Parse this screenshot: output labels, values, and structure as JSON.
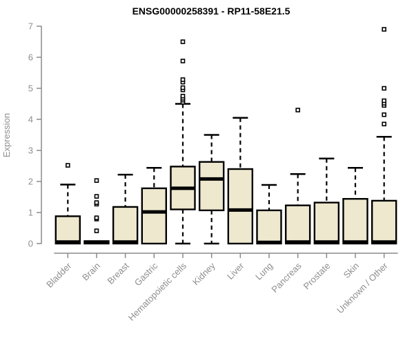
{
  "header": {
    "title": "ENSG00000258391 - RP11-58E21.5"
  },
  "chart_data": {
    "type": "boxplot",
    "title": "ENSG00000258391 - RP11-58E21.5",
    "xlabel": "",
    "ylabel": "Expression",
    "ylim": [
      0,
      7
    ],
    "yticks": [
      0,
      1,
      2,
      3,
      4,
      5,
      6,
      7
    ],
    "grid": false,
    "legend": "none",
    "categories": [
      "Bladder",
      "Brain",
      "Breast",
      "Gastric",
      "Hematopoietic cells",
      "Kidney",
      "Liver",
      "Lung",
      "Pancreas",
      "Prostate",
      "Skin",
      "Unknown / Other"
    ],
    "series": [
      {
        "name": "Bladder",
        "whisker_low": 0,
        "q1": 0,
        "median": 0.05,
        "q3": 0.88,
        "whisker_high": 1.9,
        "outliers": [
          2.52
        ]
      },
      {
        "name": "Brain",
        "whisker_low": 0,
        "q1": 0,
        "median": 0.04,
        "q3": 0.08,
        "whisker_high": 0.08,
        "outliers": [
          0.41,
          0.79,
          0.83,
          1.27,
          1.32,
          1.52,
          2.03
        ]
      },
      {
        "name": "Breast",
        "whisker_low": 0,
        "q1": 0,
        "median": 0.05,
        "q3": 1.18,
        "whisker_high": 2.22,
        "outliers": []
      },
      {
        "name": "Gastric",
        "whisker_low": 0,
        "q1": 0,
        "median": 1.02,
        "q3": 1.78,
        "whisker_high": 2.44,
        "outliers": []
      },
      {
        "name": "Hematopoietic cells",
        "whisker_low": 0,
        "q1": 1.1,
        "median": 1.78,
        "q3": 2.48,
        "whisker_high": 4.5,
        "outliers": [
          4.55,
          4.62,
          4.68,
          4.75,
          4.95,
          5.02,
          5.2,
          5.28,
          5.88,
          6.5
        ]
      },
      {
        "name": "Kidney",
        "whisker_low": 0,
        "q1": 1.07,
        "median": 2.08,
        "q3": 2.63,
        "whisker_high": 3.5,
        "outliers": []
      },
      {
        "name": "Liver",
        "whisker_low": 0,
        "q1": 0,
        "median": 1.08,
        "q3": 2.4,
        "whisker_high": 4.05,
        "outliers": []
      },
      {
        "name": "Lung",
        "whisker_low": 0,
        "q1": 0,
        "median": 0.04,
        "q3": 1.07,
        "whisker_high": 1.89,
        "outliers": []
      },
      {
        "name": "Pancreas",
        "whisker_low": 0,
        "q1": 0,
        "median": 0.05,
        "q3": 1.23,
        "whisker_high": 2.24,
        "outliers": [
          4.3
        ]
      },
      {
        "name": "Prostate",
        "whisker_low": 0,
        "q1": 0,
        "median": 0.05,
        "q3": 1.32,
        "whisker_high": 2.74,
        "outliers": []
      },
      {
        "name": "Skin",
        "whisker_low": 0,
        "q1": 0,
        "median": 0.05,
        "q3": 1.44,
        "whisker_high": 2.44,
        "outliers": []
      },
      {
        "name": "Unknown / Other",
        "whisker_low": 0,
        "q1": 0,
        "median": 0.05,
        "q3": 1.38,
        "whisker_high": 3.44,
        "outliers": [
          3.85,
          4.15,
          4.45,
          4.52,
          4.6,
          5.0,
          6.9
        ]
      }
    ],
    "colors": {
      "background": "#ffffff",
      "box_fill": "#EDE8CE",
      "box_border": "#000000",
      "median": "#000000",
      "whisker": "#000000",
      "outlier_border": "#000000",
      "outlier_fill": "#ffffff",
      "axis": "#8a8a8a",
      "tick_label": "#8e8e8e",
      "title": "#000000"
    }
  }
}
